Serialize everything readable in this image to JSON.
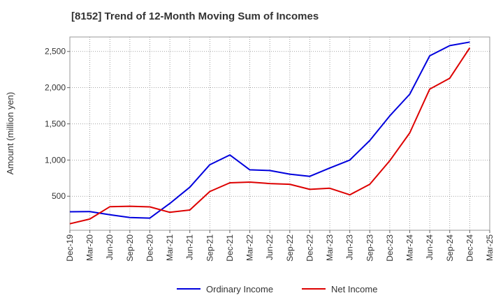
{
  "chart_data": {
    "type": "line",
    "title": "[8152]  Trend of 12-Month Moving Sum of Incomes",
    "xlabel": "",
    "ylabel": "Amount (million yen)",
    "ylim": [
      30,
      2700
    ],
    "grid": true,
    "legend_position": "bottom",
    "x": [
      "Dec-19",
      "Mar-20",
      "Jun-20",
      "Sep-20",
      "Dec-20",
      "Mar-21",
      "Jun-21",
      "Sep-21",
      "Dec-21",
      "Mar-22",
      "Jun-22",
      "Sep-22",
      "Dec-22",
      "Mar-23",
      "Jun-23",
      "Sep-23",
      "Dec-23",
      "Mar-24",
      "Jun-24",
      "Sep-24",
      "Dec-24",
      "Mar-25"
    ],
    "yticks": [
      500,
      1000,
      1500,
      2000,
      2500
    ],
    "ytick_labels": [
      "500",
      "1,000",
      "1,500",
      "2,000",
      "2,500"
    ],
    "series": [
      {
        "name": "Ordinary Income",
        "color": "#0000dd",
        "values": [
          285,
          288,
          245,
          205,
          198,
          400,
          625,
          935,
          1070,
          865,
          855,
          805,
          775,
          890,
          1000,
          1270,
          1610,
          1910,
          2440,
          2580,
          2630,
          null
        ]
      },
      {
        "name": "Net Income",
        "color": "#dd0000",
        "values": [
          120,
          185,
          355,
          362,
          353,
          278,
          310,
          565,
          685,
          695,
          675,
          665,
          595,
          610,
          520,
          665,
          990,
          1375,
          1980,
          2130,
          2550,
          null
        ]
      }
    ]
  }
}
